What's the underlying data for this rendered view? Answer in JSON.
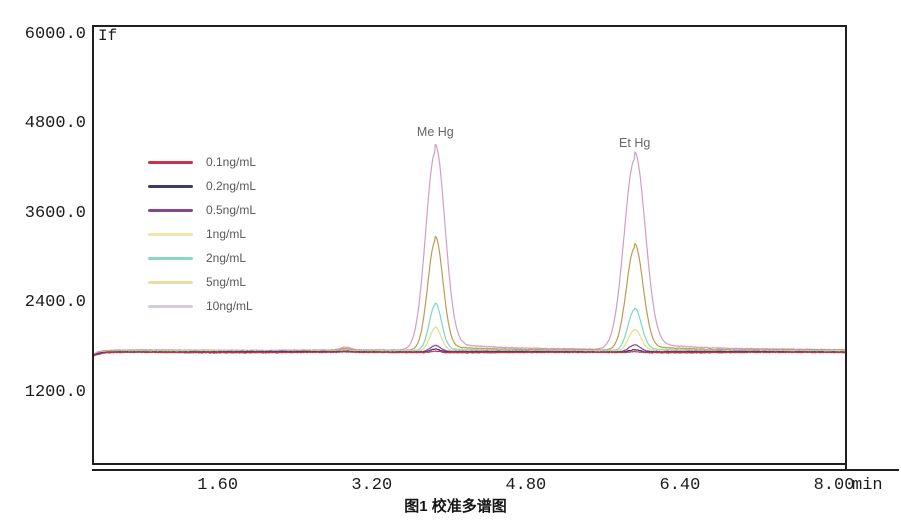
{
  "figure": {
    "y_axis_title": "If",
    "x_axis_unit": "min",
    "caption": "图1 校准多谱图",
    "y_ticks": [
      {
        "label": "6000.0",
        "value": 6000
      },
      {
        "label": "4800.0",
        "value": 4800
      },
      {
        "label": "3600.0",
        "value": 3600
      },
      {
        "label": "2400.0",
        "value": 2400
      },
      {
        "label": "1200.0",
        "value": 1200
      }
    ],
    "x_ticks": [
      {
        "label": "1.60",
        "value": 1.6
      },
      {
        "label": "3.20",
        "value": 3.2
      },
      {
        "label": "4.80",
        "value": 4.8
      },
      {
        "label": "6.40",
        "value": 6.4
      },
      {
        "label": "8.00",
        "value": 8.0
      }
    ],
    "frame_color": "#1f1f1f"
  },
  "chart_data": {
    "type": "line",
    "title": "图1 校准多谱图",
    "ylabel": "If",
    "xlabel": "min",
    "xlim": [
      0.3,
      8.14
    ],
    "ylim": [
      250,
      6150
    ],
    "grid": false,
    "legend_position": "upper-left-inside",
    "peaks": [
      {
        "name": "Me Hg",
        "retention_time_min": 3.86
      },
      {
        "name": "Et Hg",
        "retention_time_min": 5.93
      }
    ],
    "series": [
      {
        "name": "0.1ng/mL",
        "color": "#c4334f",
        "legend_color": "#c4334f",
        "baseline": 1742,
        "me_hg_apex": 1762,
        "et_hg_apex": 1756
      },
      {
        "name": "0.2ng/mL",
        "color": "#3d3a6d",
        "legend_color": "#3d3a6d",
        "baseline": 1750,
        "me_hg_apex": 1790,
        "et_hg_apex": 1782
      },
      {
        "name": "0.5ng/mL",
        "color": "#86488e",
        "legend_color": "#86488e",
        "baseline": 1755,
        "me_hg_apex": 1835,
        "et_hg_apex": 1845
      },
      {
        "name": "1ng/mL",
        "color": "#dfe085",
        "legend_color": "#eee8a6",
        "baseline": 1762,
        "me_hg_apex": 2070,
        "et_hg_apex": 2045
      },
      {
        "name": "2ng/mL",
        "color": "#7fd6c4",
        "legend_color": "#8bd7c6",
        "baseline": 1766,
        "me_hg_apex": 2380,
        "et_hg_apex": 2315
      },
      {
        "name": "5ng/mL",
        "color": "#c09a52",
        "legend_color": "#e9e0a0",
        "baseline": 1770,
        "me_hg_apex": 3240,
        "et_hg_apex": 3145
      },
      {
        "name": "10ng/mL",
        "color": "#d49cc2",
        "legend_color": "#d5ced6",
        "baseline": 1775,
        "me_hg_apex": 4430,
        "et_hg_apex": 4325
      }
    ]
  }
}
